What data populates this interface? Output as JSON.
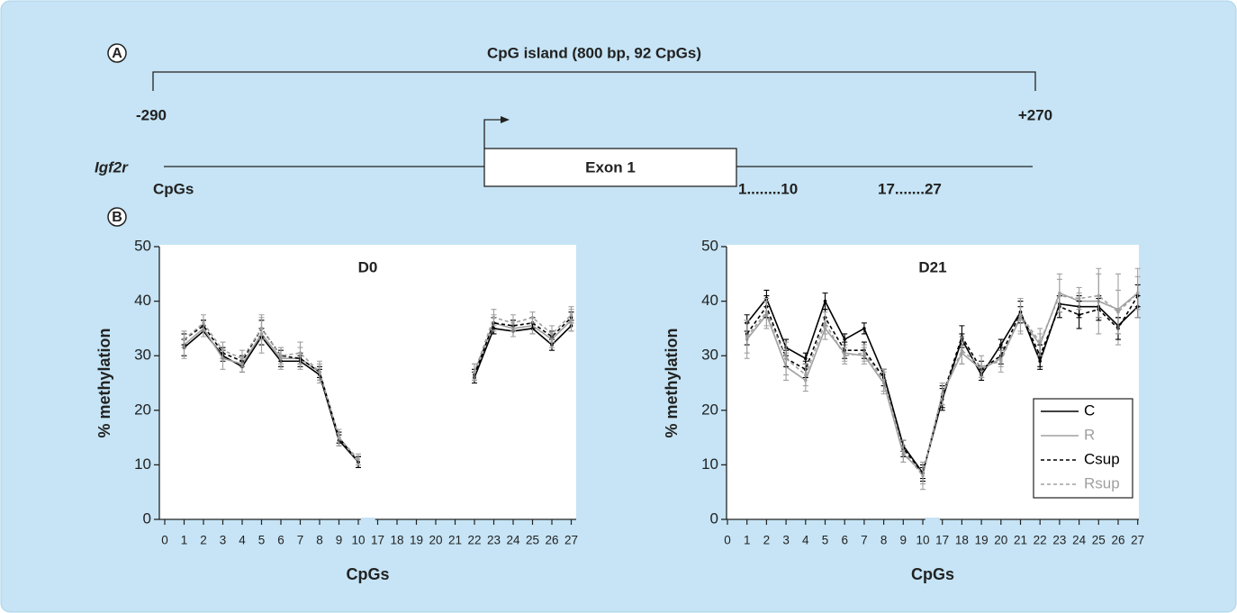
{
  "panel_a": {
    "label": "A",
    "island": "CpG island (800 bp, 92 CpGs)",
    "start": "-290",
    "end": "+270",
    "gene": "Igf2r",
    "exon": "Exon 1",
    "cpgs": "CpGs",
    "range1": "1........10",
    "range2": "17.......27"
  },
  "panel_b": {
    "label": "B"
  },
  "chart_data": [
    {
      "type": "line",
      "title": "D0",
      "x_label": "CpGs",
      "y_label": "% methylation",
      "categories": [
        "0",
        "1",
        "2",
        "3",
        "4",
        "5",
        "6",
        "7",
        "8",
        "9",
        "10",
        "17",
        "18",
        "19",
        "20",
        "21",
        "22",
        "23",
        "24",
        "25",
        "26",
        "27"
      ],
      "ylim": [
        0,
        50
      ],
      "yticks": [
        0,
        10,
        20,
        30,
        40,
        50
      ],
      "series": [
        {
          "name": "C",
          "color": "#000000",
          "dashed": false,
          "values": [
            null,
            31.5,
            34.5,
            30,
            28,
            33.5,
            29,
            29,
            26.5,
            14.5,
            10.5,
            null,
            null,
            null,
            null,
            null,
            26,
            35,
            34.5,
            35,
            32,
            35.5
          ],
          "errors": [
            null,
            1.5,
            1,
            1,
            1,
            1.5,
            1,
            1,
            1,
            1,
            1,
            null,
            null,
            null,
            null,
            null,
            1,
            1,
            1,
            1,
            1,
            1
          ]
        },
        {
          "name": "R",
          "color": "#a0a0a0",
          "dashed": false,
          "values": [
            null,
            32,
            35,
            29.5,
            28.5,
            34,
            29.5,
            29.5,
            27,
            15,
            10.5,
            null,
            null,
            null,
            null,
            null,
            27,
            36,
            35,
            35.5,
            33,
            36.5
          ],
          "errors": [
            null,
            2.5,
            1.5,
            2,
            1.5,
            3.5,
            2,
            2,
            2,
            1.5,
            1,
            null,
            null,
            null,
            null,
            null,
            1.5,
            1.5,
            1.5,
            1.5,
            1.5,
            2
          ]
        },
        {
          "name": "Csup",
          "color": "#000000",
          "dashed": true,
          "values": [
            null,
            33,
            35.5,
            30.5,
            29,
            35,
            30,
            29.5,
            27,
            15,
            10.5,
            null,
            null,
            null,
            null,
            null,
            26.5,
            36,
            35.5,
            36,
            33.5,
            37
          ],
          "errors": [
            null,
            1,
            1,
            1,
            1,
            1.5,
            1,
            1,
            1,
            1,
            1,
            null,
            null,
            null,
            null,
            null,
            1,
            1,
            1,
            1,
            1,
            1
          ]
        },
        {
          "name": "Rsup",
          "color": "#a0a0a0",
          "dashed": true,
          "values": [
            null,
            33,
            36,
            31,
            29.5,
            35,
            30,
            30.5,
            27,
            15,
            11,
            null,
            null,
            null,
            null,
            null,
            27,
            37,
            36,
            37,
            34,
            37.5
          ],
          "errors": [
            null,
            1.5,
            1.5,
            1.5,
            1.5,
            2,
            1.5,
            2,
            1.5,
            1.5,
            1,
            null,
            null,
            null,
            null,
            null,
            1.5,
            1.5,
            1.5,
            1,
            1.5,
            1.5
          ]
        }
      ]
    },
    {
      "type": "line",
      "title": "D21",
      "x_label": "CpGs",
      "y_label": "% methylation",
      "legend": "lower right",
      "categories": [
        "0",
        "1",
        "2",
        "3",
        "4",
        "5",
        "6",
        "7",
        "8",
        "9",
        "10",
        "17",
        "18",
        "19",
        "20",
        "21",
        "22",
        "23",
        "24",
        "25",
        "26",
        "27"
      ],
      "ylim": [
        0,
        50
      ],
      "yticks": [
        0,
        10,
        20,
        30,
        40,
        50
      ],
      "series": [
        {
          "name": "C",
          "color": "#000000",
          "dashed": false,
          "values": [
            null,
            36,
            40.5,
            31.5,
            29.5,
            40,
            33,
            35,
            26.5,
            13.5,
            8.5,
            22,
            33,
            26.5,
            32,
            38,
            29,
            39.5,
            39,
            39,
            35.5,
            39
          ],
          "errors": [
            null,
            1.5,
            1.5,
            1.5,
            1,
            1.5,
            1,
            1,
            1,
            1,
            1,
            2,
            1,
            1,
            1,
            1,
            1.5,
            1.5,
            2,
            2,
            1.5,
            2
          ]
        },
        {
          "name": "R",
          "color": "#a0a0a0",
          "dashed": false,
          "values": [
            null,
            33,
            37.5,
            28,
            25.5,
            35,
            30.5,
            30,
            25,
            12,
            8.5,
            23,
            30.5,
            27.5,
            29.5,
            37,
            32,
            41.5,
            40,
            40,
            38.5,
            41.5
          ],
          "errors": [
            null,
            3.5,
            2.5,
            2.5,
            2,
            2,
            1.5,
            1.5,
            2,
            1.5,
            2,
            2,
            2,
            1.5,
            1.5,
            3,
            2,
            3.5,
            1.5,
            6,
            6.5,
            4.5
          ]
        },
        {
          "name": "Csup",
          "color": "#000000",
          "dashed": true,
          "values": [
            null,
            34,
            39,
            29.5,
            27.5,
            37,
            31,
            31,
            26,
            13,
            8.5,
            22.5,
            33.5,
            27.5,
            30,
            38,
            30,
            39,
            37.5,
            38.5,
            35,
            41
          ],
          "errors": [
            null,
            2,
            2,
            1.5,
            1.5,
            1.5,
            1.5,
            1.5,
            1.5,
            1.5,
            1.5,
            2,
            2,
            1.5,
            1.5,
            2,
            2,
            2,
            2.5,
            2,
            2,
            2
          ]
        },
        {
          "name": "Rsup",
          "color": "#a0a0a0",
          "dashed": true,
          "values": [
            null,
            33.5,
            38,
            29.5,
            26.5,
            36,
            30,
            30.5,
            25.5,
            12.5,
            8,
            23,
            31,
            28,
            29,
            37.5,
            32.5,
            41,
            40.5,
            41,
            38,
            41.5
          ],
          "errors": [
            null,
            3,
            2.5,
            3,
            2,
            2,
            1.5,
            1.5,
            2,
            2,
            2.5,
            2,
            2.5,
            2,
            2,
            3,
            2.5,
            3,
            2,
            4,
            4,
            3
          ]
        }
      ]
    }
  ]
}
